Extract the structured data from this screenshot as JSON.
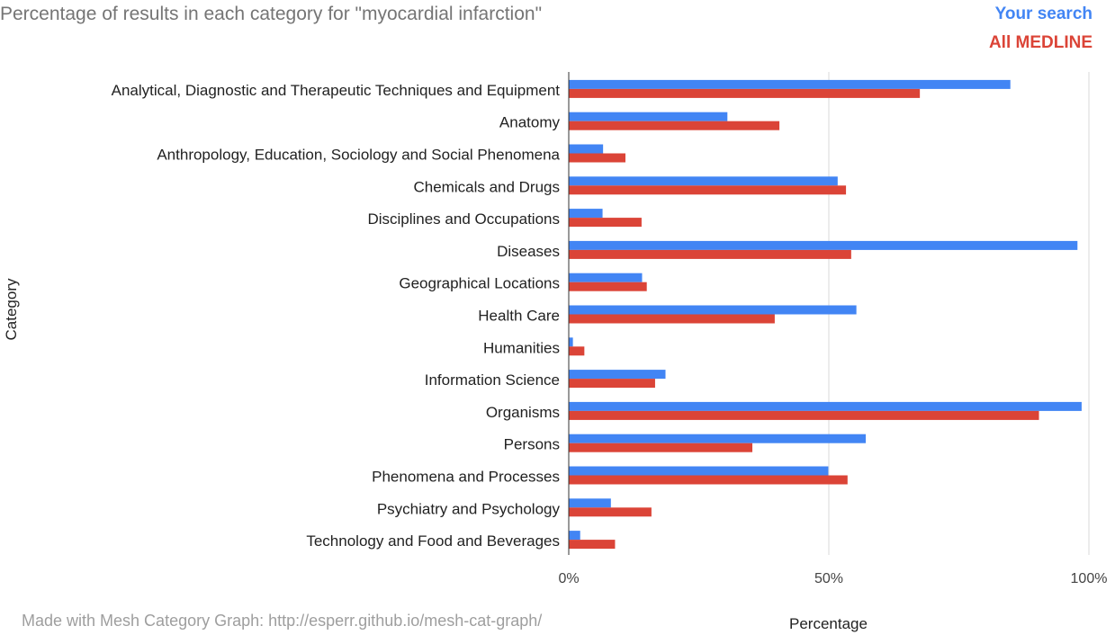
{
  "chart_data": {
    "type": "bar",
    "orientation": "horizontal",
    "title": "Percentage of results in each category for \"myocardial infarction\"",
    "xlabel": "Percentage",
    "ylabel": "Category",
    "xlim": [
      0,
      100
    ],
    "x_ticks": [
      "0%",
      "50%",
      "100%"
    ],
    "grid": true,
    "legend_position": "top-right",
    "categories": [
      "Analytical, Diagnostic and Therapeutic Techniques and Equipment",
      "Anatomy",
      "Anthropology, Education, Sociology and Social Phenomena",
      "Chemicals and Drugs",
      "Disciplines and Occupations",
      "Diseases",
      "Geographical Locations",
      "Health Care",
      "Humanities",
      "Information Science",
      "Organisms",
      "Persons",
      "Phenomena and Processes",
      "Psychiatry and Psychology",
      "Technology and Food and Beverages"
    ],
    "series": [
      {
        "name": "Your search",
        "color": "#4285f4",
        "values": [
          84.9,
          30.5,
          6.6,
          51.7,
          6.5,
          97.8,
          14.1,
          55.3,
          0.8,
          18.6,
          98.6,
          57.1,
          49.9,
          8.1,
          2.2
        ]
      },
      {
        "name": "All MEDLINE",
        "color": "#db4437",
        "values": [
          67.5,
          40.5,
          10.9,
          53.3,
          14.0,
          54.3,
          15.0,
          39.6,
          3.0,
          16.6,
          90.4,
          35.3,
          53.6,
          15.9,
          8.9
        ]
      }
    ]
  },
  "footer": "Made with Mesh Category Graph: http://esperr.github.io/mesh-cat-graph/"
}
